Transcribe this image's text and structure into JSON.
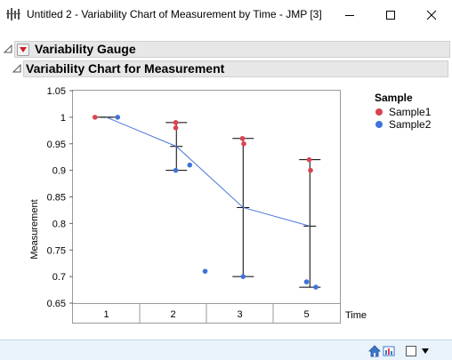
{
  "window": {
    "title": "Untitled 2 - Variability Chart of Measurement by Time - JMP [3]"
  },
  "report": {
    "outline_title": "Variability Gauge",
    "chart_title": "Variability Chart for Measurement"
  },
  "legend": {
    "title": "Sample",
    "items": [
      {
        "label": "Sample1",
        "color": "#d94452"
      },
      {
        "label": "Sample2",
        "color": "#3f73d9"
      }
    ]
  },
  "colors": {
    "header_bg": "#e7e7e7",
    "mean_line": "#4a78d8",
    "range_bar": "#000000",
    "status_bg": "#eaf2fb"
  },
  "chart_data": {
    "type": "scatter",
    "title": "",
    "xlabel": "Time",
    "ylabel": "Measurement",
    "ylim": [
      0.65,
      1.05
    ],
    "yticks": [
      "0.65",
      "0.7",
      "0.75",
      "0.8",
      "0.85",
      "0.9",
      "0.95",
      "1",
      "1.05"
    ],
    "categories": [
      "1",
      "2",
      "3",
      "5"
    ],
    "series": [
      {
        "name": "Sample1",
        "color": "#d94452",
        "points": [
          [
            1,
            1.0
          ],
          [
            2,
            0.99
          ],
          [
            2,
            0.98
          ],
          [
            3,
            0.96
          ],
          [
            3,
            0.95
          ],
          [
            5,
            0.92
          ],
          [
            5,
            0.9
          ]
        ]
      },
      {
        "name": "Sample2",
        "color": "#3f73d9",
        "points": [
          [
            1,
            1.0
          ],
          [
            2,
            0.9
          ],
          [
            2,
            0.91
          ],
          [
            3,
            0.71
          ],
          [
            3,
            0.7
          ],
          [
            5,
            0.69
          ],
          [
            5,
            0.68
          ]
        ]
      }
    ],
    "group_means": [
      1.0,
      0.945,
      0.83,
      0.795
    ],
    "group_ranges": [
      [
        1.0,
        1.0
      ],
      [
        0.9,
        0.99
      ],
      [
        0.7,
        0.96
      ],
      [
        0.68,
        0.92
      ]
    ]
  },
  "statusbar": {
    "icons": [
      "home-icon",
      "report-icon",
      "window-select-icon",
      "dropdown-arrow-icon"
    ]
  }
}
